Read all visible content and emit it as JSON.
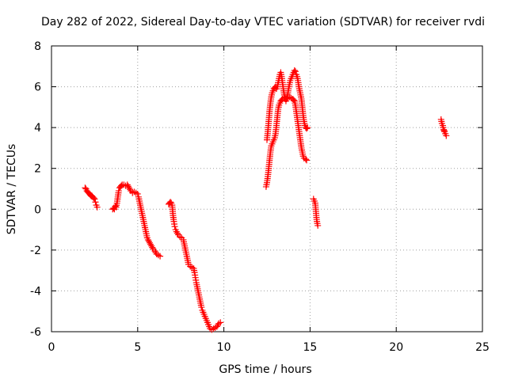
{
  "chart_data": {
    "type": "scatter",
    "title": "Day 282 of 2022, Sidereal Day-to-day VTEC variation (SDTVAR) for receiver rvdi",
    "xlabel": "GPS time / hours",
    "ylabel": "SDTVAR / TECUs",
    "xlim": [
      0,
      25
    ],
    "ylim": [
      -6,
      8
    ],
    "x_ticks": [
      0,
      5,
      10,
      15,
      20,
      25
    ],
    "x_tick_labels": [
      "0",
      "5",
      "10",
      "15",
      "20",
      "25"
    ],
    "y_ticks": [
      -6,
      -4,
      -2,
      0,
      2,
      4,
      6,
      8
    ],
    "y_tick_labels": [
      "-6",
      "-4",
      "-2",
      "0",
      "2",
      "4",
      "6",
      "8"
    ],
    "grid": true,
    "marker": "+",
    "color": "#ff0000",
    "series": [
      {
        "name": "seg-1",
        "points": [
          [
            1.95,
            1.05
          ],
          [
            2.0,
            1.0
          ],
          [
            2.05,
            0.9
          ],
          [
            2.1,
            0.85
          ],
          [
            2.15,
            0.8
          ],
          [
            2.2,
            0.75
          ],
          [
            2.25,
            0.7
          ],
          [
            2.3,
            0.65
          ],
          [
            2.35,
            0.65
          ],
          [
            2.4,
            0.6
          ],
          [
            2.45,
            0.55
          ],
          [
            2.5,
            0.5
          ],
          [
            2.55,
            0.35
          ],
          [
            2.6,
            0.2
          ],
          [
            2.65,
            0.1
          ]
        ]
      },
      {
        "name": "seg-2",
        "points": [
          [
            3.55,
            0.0
          ],
          [
            3.6,
            0.05
          ],
          [
            3.65,
            0.0
          ],
          [
            3.7,
            0.15
          ],
          [
            3.75,
            0.1
          ],
          [
            3.8,
            0.3
          ],
          [
            3.85,
            0.6
          ],
          [
            3.9,
            0.9
          ],
          [
            3.95,
            1.05
          ],
          [
            4.0,
            1.1
          ],
          [
            4.05,
            1.15
          ],
          [
            4.1,
            1.2
          ],
          [
            4.2,
            1.2
          ],
          [
            4.3,
            1.15
          ],
          [
            4.4,
            1.2
          ],
          [
            4.5,
            1.05
          ],
          [
            4.6,
            0.9
          ],
          [
            4.7,
            0.8
          ],
          [
            4.8,
            0.85
          ],
          [
            4.9,
            0.8
          ],
          [
            5.0,
            0.75
          ],
          [
            5.05,
            0.6
          ],
          [
            5.1,
            0.4
          ],
          [
            5.15,
            0.2
          ],
          [
            5.2,
            0.0
          ],
          [
            5.25,
            -0.2
          ],
          [
            5.3,
            -0.4
          ],
          [
            5.35,
            -0.6
          ],
          [
            5.4,
            -0.8
          ],
          [
            5.45,
            -1.0
          ],
          [
            5.5,
            -1.2
          ],
          [
            5.55,
            -1.4
          ],
          [
            5.6,
            -1.5
          ],
          [
            5.7,
            -1.65
          ],
          [
            5.8,
            -1.8
          ],
          [
            5.9,
            -1.95
          ],
          [
            6.0,
            -2.05
          ],
          [
            6.1,
            -2.2
          ],
          [
            6.2,
            -2.25
          ],
          [
            6.3,
            -2.3
          ]
        ]
      },
      {
        "name": "seg-3",
        "points": [
          [
            6.8,
            0.25
          ],
          [
            6.85,
            0.3
          ],
          [
            6.9,
            0.35
          ],
          [
            6.95,
            0.3
          ],
          [
            7.0,
            0.2
          ],
          [
            7.02,
            0.0
          ],
          [
            7.05,
            -0.3
          ],
          [
            7.1,
            -0.6
          ],
          [
            7.15,
            -0.85
          ],
          [
            7.2,
            -1.0
          ],
          [
            7.25,
            -1.1
          ],
          [
            7.35,
            -1.25
          ],
          [
            7.45,
            -1.35
          ],
          [
            7.55,
            -1.4
          ],
          [
            7.65,
            -1.5
          ],
          [
            7.7,
            -1.7
          ],
          [
            7.75,
            -1.9
          ],
          [
            7.8,
            -2.1
          ],
          [
            7.85,
            -2.3
          ],
          [
            7.9,
            -2.5
          ],
          [
            7.95,
            -2.7
          ],
          [
            8.05,
            -2.8
          ],
          [
            8.15,
            -2.85
          ],
          [
            8.25,
            -2.9
          ],
          [
            8.3,
            -3.1
          ],
          [
            8.35,
            -3.35
          ],
          [
            8.4,
            -3.6
          ],
          [
            8.45,
            -3.8
          ],
          [
            8.5,
            -4.0
          ],
          [
            8.55,
            -4.2
          ],
          [
            8.6,
            -4.4
          ],
          [
            8.65,
            -4.6
          ],
          [
            8.7,
            -4.8
          ],
          [
            8.75,
            -4.95
          ],
          [
            8.8,
            -5.05
          ],
          [
            8.85,
            -5.15
          ],
          [
            8.9,
            -5.25
          ],
          [
            8.95,
            -5.35
          ],
          [
            9.0,
            -5.45
          ],
          [
            9.05,
            -5.55
          ],
          [
            9.1,
            -5.65
          ],
          [
            9.15,
            -5.75
          ],
          [
            9.2,
            -5.85
          ],
          [
            9.3,
            -5.9
          ],
          [
            9.4,
            -5.85
          ],
          [
            9.5,
            -5.8
          ],
          [
            9.6,
            -5.75
          ],
          [
            9.7,
            -5.6
          ],
          [
            9.8,
            -5.55
          ]
        ]
      },
      {
        "name": "seg-4a",
        "points": [
          [
            12.45,
            1.1
          ],
          [
            12.5,
            1.3
          ],
          [
            12.55,
            1.6
          ],
          [
            12.6,
            2.0
          ],
          [
            12.65,
            2.4
          ],
          [
            12.7,
            2.8
          ],
          [
            12.75,
            3.1
          ],
          [
            12.8,
            3.2
          ],
          [
            12.85,
            3.3
          ],
          [
            12.9,
            3.4
          ],
          [
            12.95,
            3.5
          ],
          [
            13.0,
            3.7
          ],
          [
            13.05,
            4.1
          ],
          [
            13.1,
            4.5
          ],
          [
            13.15,
            4.9
          ],
          [
            13.2,
            5.1
          ],
          [
            13.25,
            5.2
          ],
          [
            13.3,
            5.3
          ],
          [
            13.35,
            5.35
          ],
          [
            13.4,
            5.4
          ],
          [
            13.5,
            5.45
          ],
          [
            13.6,
            5.5
          ],
          [
            13.7,
            5.45
          ],
          [
            13.8,
            5.5
          ],
          [
            13.9,
            5.45
          ],
          [
            14.0,
            5.4
          ],
          [
            14.05,
            5.35
          ],
          [
            14.1,
            5.3
          ],
          [
            14.15,
            5.1
          ],
          [
            14.2,
            4.8
          ],
          [
            14.25,
            4.5
          ],
          [
            14.3,
            4.2
          ],
          [
            14.35,
            3.9
          ],
          [
            14.4,
            3.6
          ],
          [
            14.45,
            3.3
          ],
          [
            14.5,
            3.0
          ],
          [
            14.55,
            2.8
          ],
          [
            14.6,
            2.6
          ],
          [
            14.65,
            2.5
          ],
          [
            14.75,
            2.45
          ],
          [
            14.8,
            2.4
          ]
        ]
      },
      {
        "name": "seg-4b",
        "points": [
          [
            12.5,
            3.4
          ],
          [
            12.55,
            3.8
          ],
          [
            12.6,
            4.3
          ],
          [
            12.65,
            4.8
          ],
          [
            12.7,
            5.2
          ],
          [
            12.75,
            5.5
          ],
          [
            12.8,
            5.7
          ],
          [
            12.85,
            5.8
          ],
          [
            12.9,
            5.9
          ],
          [
            12.95,
            5.95
          ],
          [
            13.0,
            6.0
          ],
          [
            13.05,
            5.9
          ],
          [
            13.1,
            6.0
          ],
          [
            13.15,
            6.2
          ],
          [
            13.2,
            6.4
          ],
          [
            13.25,
            6.6
          ],
          [
            13.3,
            6.7
          ],
          [
            13.35,
            6.5
          ],
          [
            13.4,
            6.2
          ],
          [
            13.45,
            5.9
          ],
          [
            13.5,
            5.6
          ],
          [
            13.55,
            5.4
          ],
          [
            13.6,
            5.3
          ],
          [
            13.65,
            5.4
          ],
          [
            13.7,
            5.6
          ],
          [
            13.75,
            5.9
          ],
          [
            13.8,
            6.1
          ],
          [
            13.85,
            6.3
          ],
          [
            13.9,
            6.4
          ],
          [
            13.95,
            6.5
          ],
          [
            14.0,
            6.6
          ],
          [
            14.05,
            6.7
          ],
          [
            14.1,
            6.8
          ],
          [
            14.15,
            6.75
          ],
          [
            14.2,
            6.6
          ],
          [
            14.25,
            6.5
          ],
          [
            14.3,
            6.3
          ],
          [
            14.35,
            6.0
          ],
          [
            14.4,
            5.8
          ],
          [
            14.45,
            5.6
          ],
          [
            14.5,
            5.4
          ],
          [
            14.55,
            5.0
          ],
          [
            14.6,
            4.6
          ],
          [
            14.65,
            4.3
          ],
          [
            14.7,
            4.1
          ],
          [
            14.75,
            4.0
          ],
          [
            14.8,
            3.95
          ],
          [
            14.85,
            4.0
          ]
        ]
      },
      {
        "name": "seg-5",
        "points": [
          [
            15.2,
            0.5
          ],
          [
            15.25,
            0.4
          ],
          [
            15.3,
            0.3
          ],
          [
            15.32,
            0.1
          ],
          [
            15.34,
            -0.1
          ],
          [
            15.36,
            -0.3
          ],
          [
            15.38,
            -0.5
          ],
          [
            15.4,
            -0.6
          ],
          [
            15.42,
            -0.7
          ],
          [
            15.45,
            -0.8
          ]
        ]
      },
      {
        "name": "seg-6",
        "points": [
          [
            22.6,
            4.4
          ],
          [
            22.65,
            4.2
          ],
          [
            22.7,
            4.1
          ],
          [
            22.72,
            4.0
          ],
          [
            22.75,
            3.9
          ],
          [
            22.78,
            3.85
          ],
          [
            22.8,
            3.8
          ],
          [
            22.85,
            3.7
          ],
          [
            22.9,
            3.6
          ]
        ]
      }
    ]
  }
}
